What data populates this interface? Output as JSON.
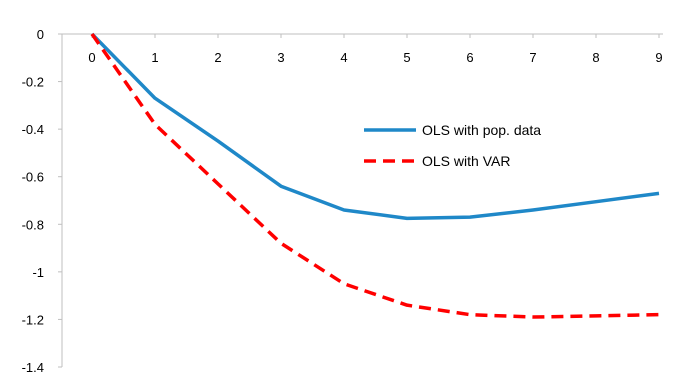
{
  "chart_data": {
    "type": "line",
    "title": "",
    "xlabel": "",
    "ylabel": "",
    "x": [
      0,
      1,
      2,
      3,
      4,
      5,
      6,
      7,
      8,
      9
    ],
    "xlim": [
      0,
      9
    ],
    "ylim": [
      -1.4,
      0
    ],
    "y_ticks": [
      "0",
      "-0.2",
      "-0.4",
      "-0.6",
      "-0.8",
      "-1",
      "-1.2",
      "-1.4"
    ],
    "x_ticks": [
      "0",
      "1",
      "2",
      "3",
      "4",
      "5",
      "6",
      "7",
      "8",
      "9"
    ],
    "grid": false,
    "legend_position": "center-right",
    "series": [
      {
        "name": "OLS with pop. data",
        "color": "#1f88c8",
        "style": "solid",
        "values": [
          0,
          -0.27,
          -0.45,
          -0.64,
          -0.74,
          -0.775,
          -0.77,
          -0.74,
          -0.705,
          -0.67
        ]
      },
      {
        "name": "OLS with VAR",
        "color": "#ff0000",
        "style": "dashed",
        "values": [
          0,
          -0.38,
          -0.63,
          -0.88,
          -1.05,
          -1.14,
          -1.18,
          -1.19,
          -1.185,
          -1.18
        ]
      }
    ]
  }
}
